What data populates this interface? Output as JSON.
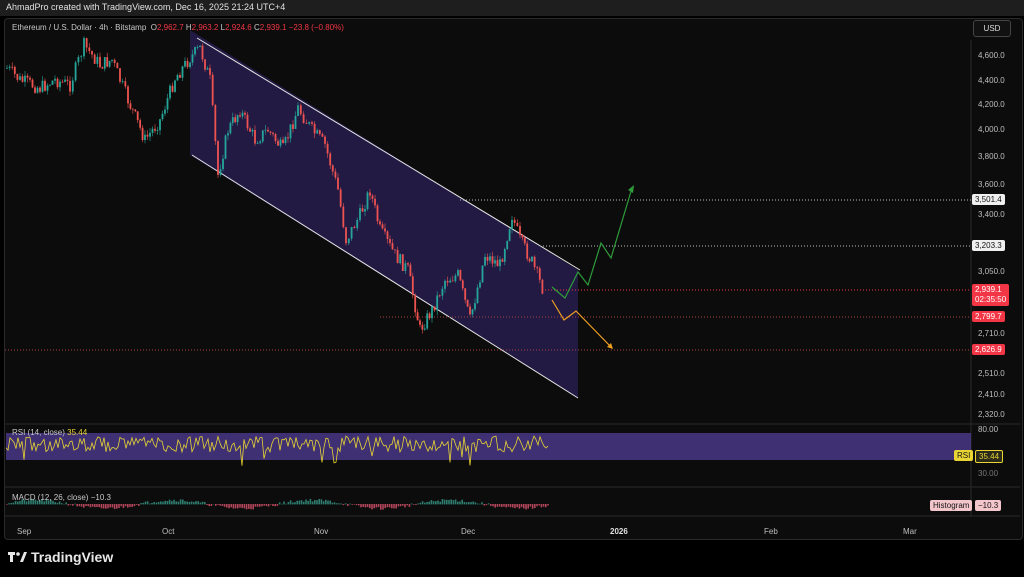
{
  "header": {
    "credit": "AhmadPro created with TradingView.com, Dec 16, 2025 21:24 UTC+4"
  },
  "legend": {
    "symbol": "Ethereum / U.S. Dollar · 4h · Bitstamp",
    "open_label": "O",
    "open": "2,962.7",
    "high_label": "H",
    "high": "2,963.2",
    "low_label": "L",
    "low": "2,924.6",
    "close_label": "C",
    "close": "2,939.1",
    "change": "−23.8 (−0.80%)"
  },
  "currency": "USD",
  "price_axis": {
    "ticks": [
      "4,600.0",
      "4,400.0",
      "4,200.0",
      "4,000.0",
      "3,800.0",
      "3,600.0",
      "3,400.0",
      "3,050.0",
      "2,710.0",
      "2,510.0",
      "2,410.0",
      "2,320.0"
    ],
    "badges": {
      "level_1": "3,501.4",
      "level_2": "3,203.3",
      "last_price": "2,939.1",
      "countdown": "02:35:50",
      "level_3": "2,799.7",
      "level_4": "2,626.9"
    }
  },
  "rsi": {
    "label": "RSI (14, close)",
    "value": "35.44",
    "tag": "RSI",
    "top_tick": "80.00",
    "bottom_tick": "30.00"
  },
  "macd": {
    "label": "MACD (12, 26, close)",
    "value": "−10.3",
    "tag": "Histogram"
  },
  "time_axis": [
    "Sep",
    "Oct",
    "Nov",
    "Dec",
    "2026",
    "Feb",
    "Mar"
  ],
  "footer": {
    "brand": "TradingView"
  },
  "colors": {
    "up": "#26a69a",
    "down": "#ef5350",
    "channel": "#3a2d6e",
    "rsi_band": "#4b3a8c",
    "rsi_line": "#e8d534",
    "projection_up": "#2e9c3a",
    "projection_down": "#f0a020",
    "last_badge": "#f23645"
  },
  "chart_data": {
    "type": "candlestick",
    "price_range": [
      2300,
      4800
    ],
    "key_levels": [
      3501.4,
      3203.3,
      2799.7,
      2626.9
    ],
    "last_price": 2939.1
  }
}
